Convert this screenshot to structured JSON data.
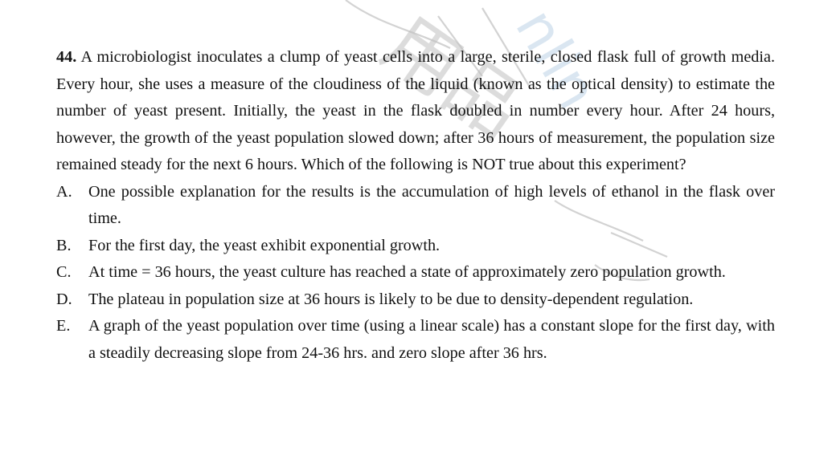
{
  "question": {
    "number": "44.",
    "stem": "A microbiologist inoculates a clump of yeast cells into a large, sterile, closed flask full of growth media. Every hour, she uses a measure of the cloudiness of the liquid (known as the optical density) to estimate the number of yeast present. Initially, the yeast in the flask doubled in number every hour. After 24 hours, however, the growth of the yeast population slowed down; after 36 hours of measurement, the population size remained steady for the next 6 hours. Which of the following is NOT true about this experiment?",
    "options": [
      {
        "letter": "A.",
        "text": "One possible explanation for the results is the accumulation of high levels of ethanol in the flask over time."
      },
      {
        "letter": "B.",
        "text": "For the first day, the yeast exhibit exponential growth."
      },
      {
        "letter": "C.",
        "text": "At time = 36 hours, the yeast culture has reached a state of approximately zero population growth."
      },
      {
        "letter": "D.",
        "text": "The plateau in population size at 36 hours is likely to be due to density-dependent regulation."
      },
      {
        "letter": "E.",
        "text": "A graph of the yeast population over time (using a linear scale) has a constant slope for the first day, with a steadily decreasing slope from 24-36 hrs. and zero slope after 36 hrs."
      }
    ]
  },
  "watermark": {
    "glyphs_cjk": "用品",
    "glyphs_latin": "nlin",
    "color": "#b8b8b8"
  }
}
